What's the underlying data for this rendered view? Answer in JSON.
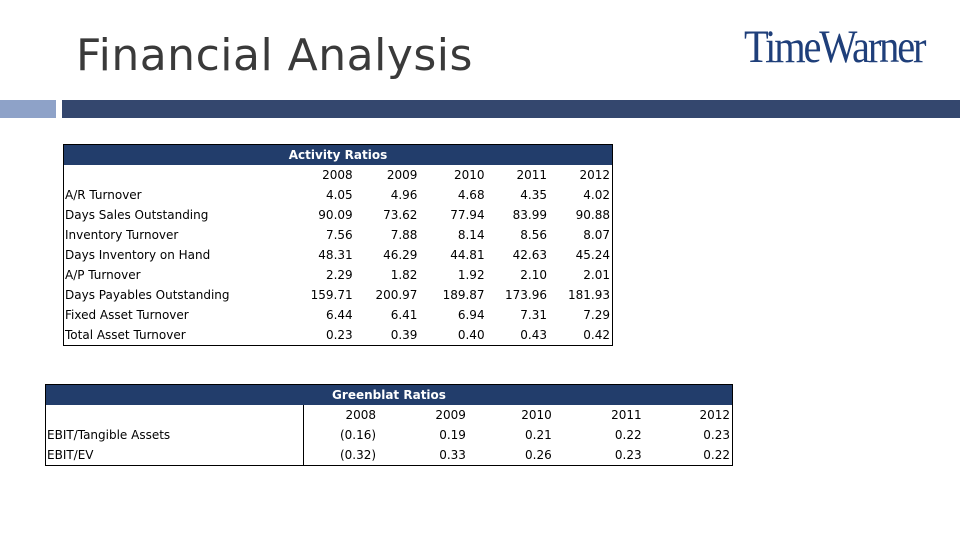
{
  "slide": {
    "title": "Financial Analysis",
    "logo_text": "TimeWarner",
    "accent_color": "#34476e",
    "accent_light_color": "#8ea2c8"
  },
  "activity": {
    "title": "Activity Ratios",
    "years": [
      "2008",
      "2009",
      "2010",
      "2011",
      "2012"
    ],
    "rows": [
      {
        "label": "A/R Turnover",
        "values": [
          "4.05",
          "4.96",
          "4.68",
          "4.35",
          "4.02"
        ]
      },
      {
        "label": "Days Sales Outstanding",
        "values": [
          "90.09",
          "73.62",
          "77.94",
          "83.99",
          "90.88"
        ]
      },
      {
        "label": "Inventory Turnover",
        "values": [
          "7.56",
          "7.88",
          "8.14",
          "8.56",
          "8.07"
        ]
      },
      {
        "label": "Days Inventory on Hand",
        "values": [
          "48.31",
          "46.29",
          "44.81",
          "42.63",
          "45.24"
        ]
      },
      {
        "label": "A/P Turnover",
        "values": [
          "2.29",
          "1.82",
          "1.92",
          "2.10",
          "2.01"
        ]
      },
      {
        "label": "Days Payables Outstanding",
        "values": [
          "159.71",
          "200.97",
          "189.87",
          "173.96",
          "181.93"
        ]
      },
      {
        "label": "Fixed Asset Turnover",
        "values": [
          "6.44",
          "6.41",
          "6.94",
          "7.31",
          "7.29"
        ]
      },
      {
        "label": "Total Asset Turnover",
        "values": [
          "0.23",
          "0.39",
          "0.40",
          "0.43",
          "0.42"
        ]
      }
    ]
  },
  "greenblat": {
    "title": "Greenblat Ratios",
    "years": [
      "2008",
      "2009",
      "2010",
      "2011",
      "2012"
    ],
    "rows": [
      {
        "label": "EBIT/Tangible Assets",
        "values": [
          "(0.16)",
          "0.19",
          "0.21",
          "0.22",
          "0.23"
        ]
      },
      {
        "label": "EBIT/EV",
        "values": [
          "(0.32)",
          "0.33",
          "0.26",
          "0.23",
          "0.22"
        ]
      }
    ]
  }
}
